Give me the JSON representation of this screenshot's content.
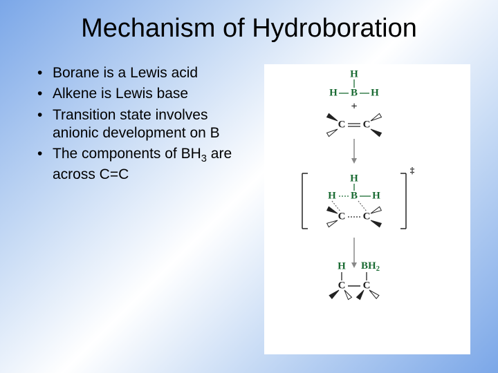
{
  "title": "Mechanism of Hydroboration",
  "bullets": [
    "Borane is a Lewis acid",
    "Alkene is Lewis base",
    "Transition state involves anionic development on B",
    "The components of BH₃ are across C=C"
  ],
  "diagram": {
    "stage1": {
      "bh3": {
        "center_label": "B",
        "top_label": "H",
        "left_label": "H",
        "right_label": "H",
        "color": "#1a6b33"
      },
      "plus": "+",
      "alkene": {
        "c1": "C",
        "c2": "C",
        "bond": "double",
        "color": "#222222"
      }
    },
    "arrow1": {
      "type": "down",
      "color": "#888888"
    },
    "stage2": {
      "bracket": true,
      "dagger": "‡",
      "bh3": {
        "center_label": "B",
        "top_label": "H",
        "left_label": "H",
        "right_label": "H",
        "color": "#1a6b33"
      },
      "alkene": {
        "c1": "C",
        "c2": "C",
        "bond": "partial",
        "color": "#222222"
      },
      "dotted_bonds": true
    },
    "arrow2": {
      "type": "down",
      "color": "#888888"
    },
    "stage3": {
      "product": {
        "c1": "C",
        "c2": "C",
        "c1_up": "H",
        "c2_up": "BH",
        "bh2_label": "BH",
        "bh2_sub": "2",
        "h_color": "#1a6b33",
        "b_color": "#1a6b33",
        "c_color": "#222222"
      }
    },
    "font_family": "Times New Roman, serif",
    "atom_fontsize": 15,
    "atom_fontweight": "bold"
  }
}
